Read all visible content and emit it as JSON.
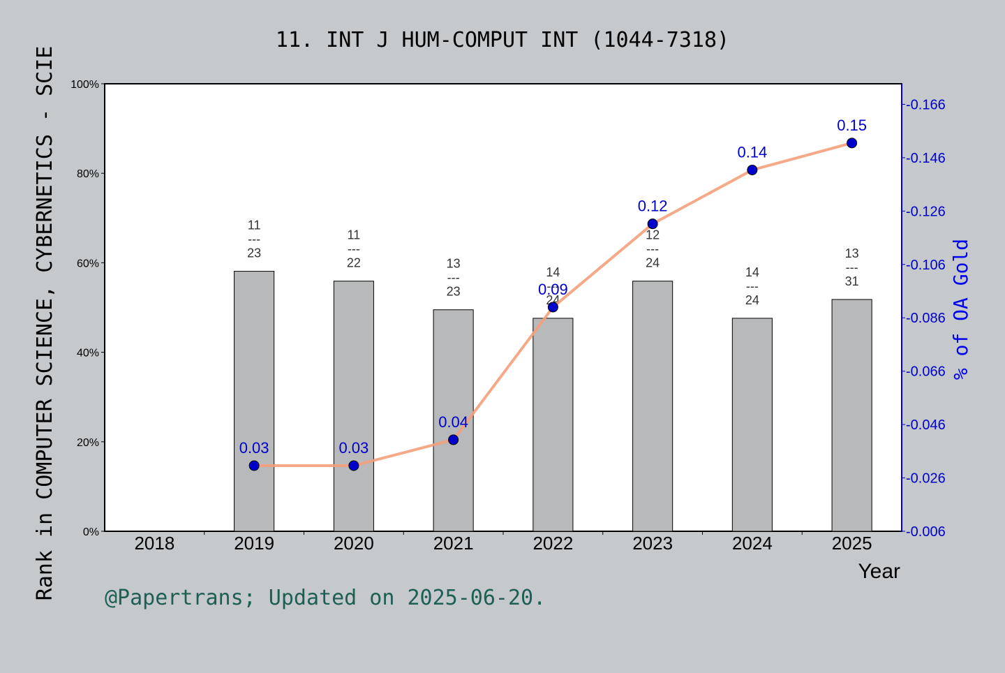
{
  "chart_data": {
    "type": "bar",
    "title": "11. INT J HUM-COMPUT INT (1044-7318)",
    "xlabel": "Year",
    "ylabel": "Rank in COMPUTER SCIENCE, CYBERNETICS - SCIE",
    "y2label": "% of OA Gold",
    "categories": [
      "2018",
      "2019",
      "2020",
      "2021",
      "2022",
      "2023",
      "2024",
      "2025"
    ],
    "ylim": [
      0,
      100
    ],
    "yticks": [
      "0%",
      "20%",
      "40%",
      "60%",
      "80%",
      "100%"
    ],
    "y2lim": [
      0.006,
      0.1737
    ],
    "y2ticks": [
      "0.006",
      "0.026",
      "0.046",
      "0.066",
      "0.086",
      "0.106",
      "0.126",
      "0.146",
      "0.166"
    ],
    "series": [
      {
        "kind": "bar",
        "values": [
          null,
          58.1,
          55.9,
          49.5,
          47.6,
          55.9,
          47.6,
          51.8
        ],
        "rank_labels": [
          null,
          "11",
          "11",
          "13",
          "14",
          "12",
          "14",
          "13"
        ],
        "total_labels": [
          null,
          "23",
          "22",
          "23",
          "24",
          "24",
          "24",
          "31"
        ],
        "color": "#b8b9ba"
      },
      {
        "kind": "line",
        "axis": "right",
        "values": [
          null,
          0.03,
          0.03,
          0.04,
          0.09,
          0.12,
          0.14,
          0.15
        ],
        "data_labels": [
          null,
          "0.03",
          "0.03",
          "0.04",
          "0.09",
          "0.12",
          "0.14",
          "0.15"
        ],
        "plotted": [
          null,
          0.0306,
          0.0306,
          0.0403,
          0.09,
          0.1212,
          0.1414,
          0.1515
        ],
        "line_color": "#f4a07c",
        "marker_color": "#0000cc"
      }
    ],
    "grid": false,
    "legend": "none",
    "annotation": "@Papertrans; Updated on 2025-06-20."
  },
  "colors": {
    "background": "#c5c9cc",
    "plot_background": "#ffffff",
    "bar": "#b8b9ba",
    "line": "#f4a07c",
    "marker": "#0000cc",
    "right_axis": "#0000cc",
    "annotation": "#1e5f55"
  }
}
